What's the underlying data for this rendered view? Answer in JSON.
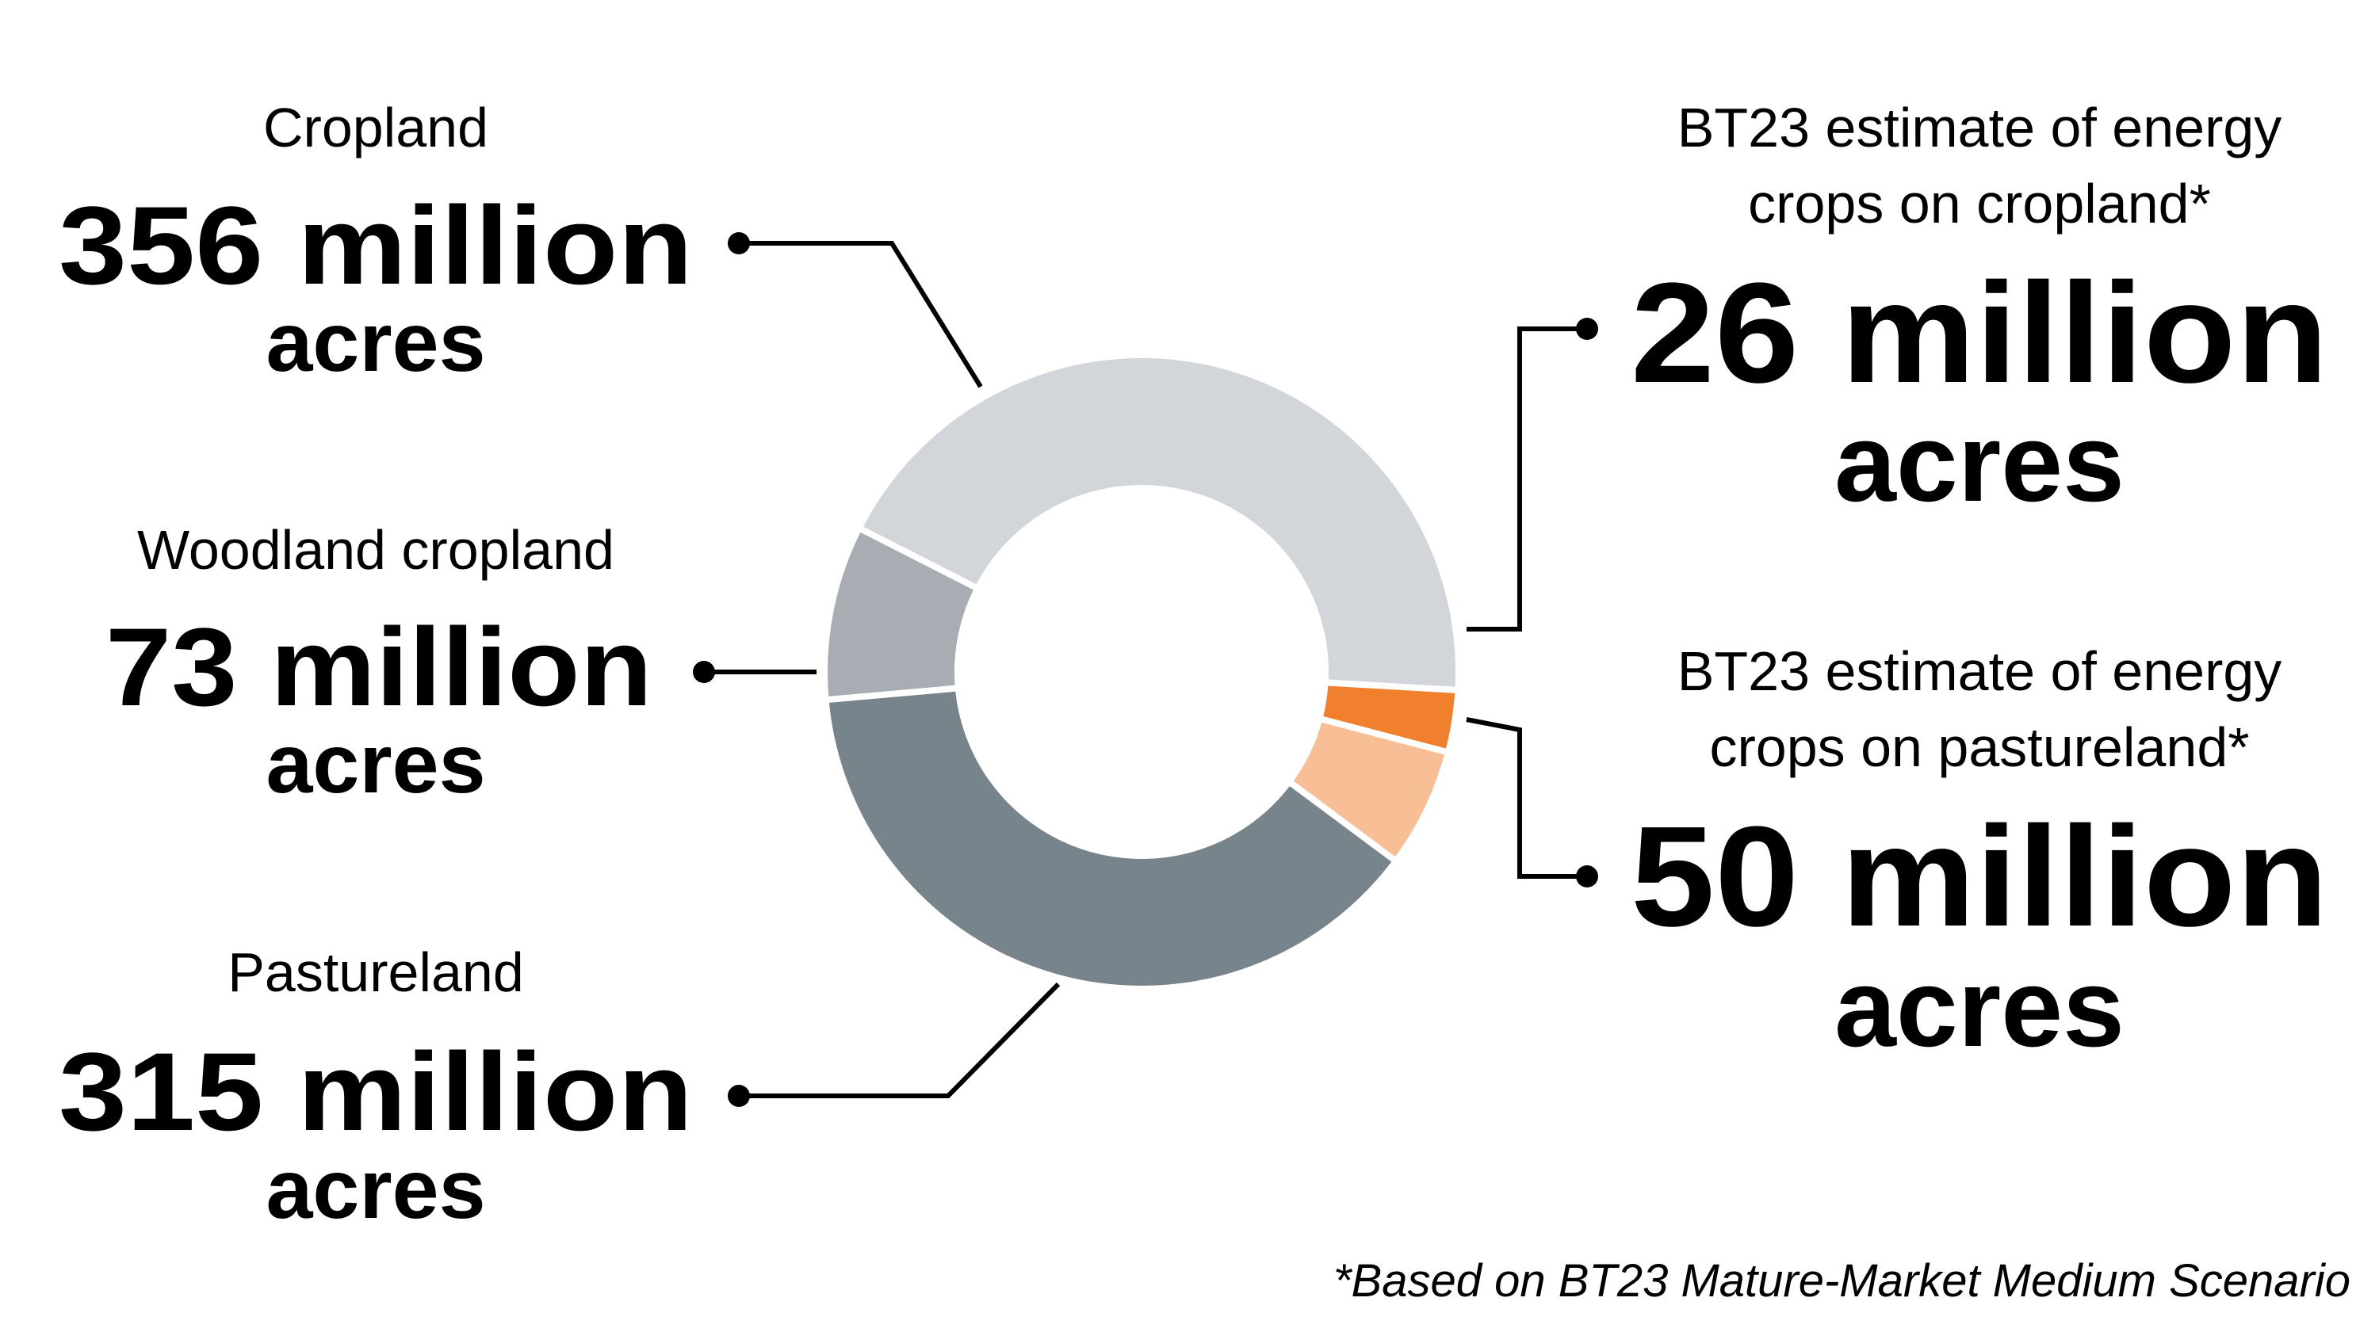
{
  "chart_data": {
    "type": "pie",
    "unit": "million acres",
    "slices": [
      {
        "label": "Cropland",
        "value": 356,
        "color": "#d2d5d9"
      },
      {
        "label": "BT23 estimate of energy crops on cropland*",
        "value": 26,
        "color": "#f07f2e"
      },
      {
        "label": "BT23 estimate of energy crops on pastureland*",
        "value": 50,
        "color": "#f8bf97"
      },
      {
        "label": "Pastureland",
        "value": 315,
        "color": "#78848c"
      },
      {
        "label": "Woodland cropland",
        "value": 73,
        "color": "#a7adb2"
      }
    ]
  },
  "callouts": {
    "cropland": {
      "label": "Cropland",
      "value_line": "356 million",
      "unit_line": "acres"
    },
    "woodland": {
      "label": "Woodland cropland",
      "value_line": "73 million",
      "unit_line": "acres"
    },
    "pastureland": {
      "label": "Pastureland",
      "value_line": "315 million",
      "unit_line": "acres"
    },
    "energy_cropland": {
      "label_line1": "BT23 estimate of energy",
      "label_line2": "crops on cropland*",
      "value_line": "26 million",
      "unit_line": "acres"
    },
    "energy_pastureland": {
      "label_line1": "BT23 estimate of energy",
      "label_line2": "crops on pastureland*",
      "value_line": "50 million",
      "unit_line": "acres"
    }
  },
  "footnote": "*Based on BT23 Mature-Market Medium Scenario"
}
